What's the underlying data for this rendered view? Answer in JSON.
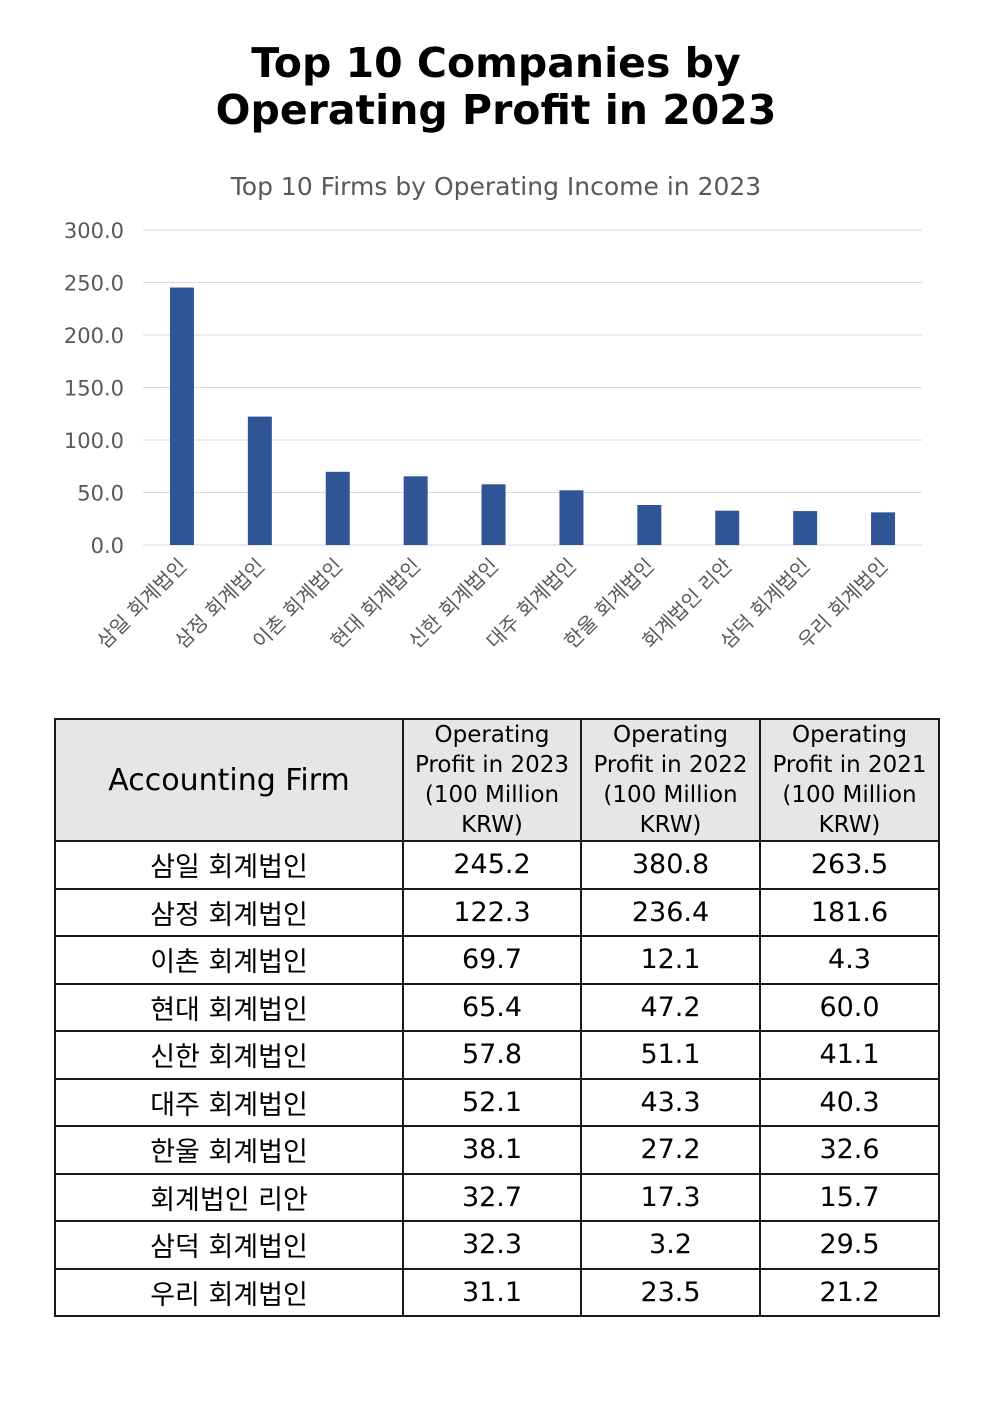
{
  "page_title": "Top 10 Companies by\nOperating Profit in 2023",
  "chart_data": {
    "type": "bar",
    "title": "Top 10 Firms by Operating Income in 2023",
    "xlabel": "",
    "ylabel": "",
    "ylim": [
      0,
      300
    ],
    "yticks": [
      "0.0",
      "50.0",
      "100.0",
      "150.0",
      "200.0",
      "250.0",
      "300.0"
    ],
    "grid": true,
    "categories": [
      "삼일 회계법인",
      "삼정 회계법인",
      "이촌 회계법인",
      "현대 회계법인",
      "신한 회계법인",
      "대주 회계법인",
      "한울 회계법인",
      "회계법인 리안",
      "삼덕 회계법인",
      "우리 회계법인"
    ],
    "values": [
      245.2,
      122.3,
      69.7,
      65.4,
      57.8,
      52.1,
      38.1,
      32.7,
      32.3,
      31.1
    ],
    "bar_color": "#2f5597",
    "grid_color": "#d9d9d9",
    "tick_color": "#595959",
    "title_color": "#595959"
  },
  "table": {
    "headers": [
      "Accounting Firm",
      "Operating\nProfit in 2023\n(100 Million\nKRW)",
      "Operating\nProfit in 2022\n(100 Million\nKRW)",
      "Operating\nProfit in 2021\n(100 Million\nKRW)"
    ],
    "rows": [
      [
        "삼일 회계법인",
        "245.2",
        "380.8",
        "263.5"
      ],
      [
        "삼정 회계법인",
        "122.3",
        "236.4",
        "181.6"
      ],
      [
        "이촌 회계법인",
        "69.7",
        "12.1",
        "4.3"
      ],
      [
        "현대 회계법인",
        "65.4",
        "47.2",
        "60.0"
      ],
      [
        "신한 회계법인",
        "57.8",
        "51.1",
        "41.1"
      ],
      [
        "대주 회계법인",
        "52.1",
        "43.3",
        "40.3"
      ],
      [
        "한울 회계법인",
        "38.1",
        "27.2",
        "32.6"
      ],
      [
        "회계법인 리안",
        "32.7",
        "17.3",
        "15.7"
      ],
      [
        "삼덕 회계법인",
        "32.3",
        "3.2",
        "29.5"
      ],
      [
        "우리 회계법인",
        "31.1",
        "23.5",
        "21.2"
      ]
    ]
  }
}
